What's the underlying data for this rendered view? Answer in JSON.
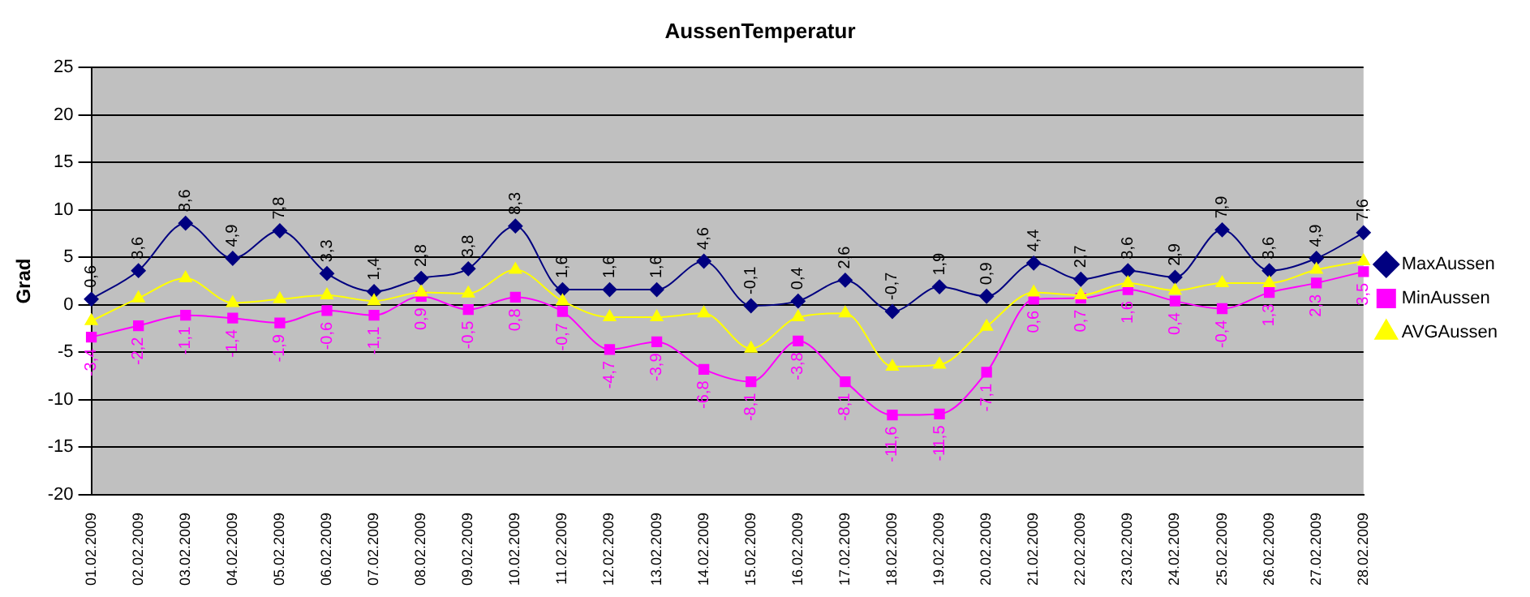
{
  "chart_data": {
    "type": "line",
    "title": "AussenTemperatur",
    "ylabel": "Grad",
    "categories": [
      "01.02.2009",
      "02.02.2009",
      "03.02.2009",
      "04.02.2009",
      "05.02.2009",
      "06.02.2009",
      "07.02.2009",
      "08.02.2009",
      "09.02.2009",
      "10.02.2009",
      "11.02.2009",
      "12.02.2009",
      "13.02.2009",
      "14.02.2009",
      "15.02.2009",
      "16.02.2009",
      "17.02.2009",
      "18.02.2009",
      "19.02.2009",
      "20.02.2009",
      "21.02.2009",
      "22.02.2009",
      "23.02.2009",
      "24.02.2009",
      "25.02.2009",
      "26.02.2009",
      "27.02.2009",
      "28.02.2009"
    ],
    "series": [
      {
        "name": "MaxAussen",
        "color": "#000080",
        "marker": "diamond",
        "values": [
          0.6,
          3.6,
          8.6,
          4.9,
          7.8,
          3.3,
          1.4,
          2.8,
          3.8,
          8.3,
          1.6,
          1.6,
          1.6,
          4.6,
          -0.1,
          0.4,
          2.6,
          -0.7,
          1.9,
          0.9,
          4.4,
          2.7,
          3.6,
          2.9,
          7.9,
          3.6,
          4.9,
          7.6
        ],
        "value_labels": [
          "0,6",
          "3,6",
          "8,6",
          "4,9",
          "7,8",
          "3,3",
          "1,4",
          "2,8",
          "3,8",
          "8,3",
          "1,6",
          "1,6",
          "1,6",
          "4,6",
          "-0,1",
          "0,4",
          "2,6",
          "-0,7",
          "1,9",
          "0,9",
          "4,4",
          "2,7",
          "3,6",
          "2,9",
          "7,9",
          "3,6",
          "4,9",
          "7,6"
        ]
      },
      {
        "name": "MinAussen",
        "color": "#ff00ff",
        "marker": "square",
        "values": [
          -3.4,
          -2.2,
          -1.1,
          -1.4,
          -1.9,
          -0.6,
          -1.1,
          0.9,
          -0.5,
          0.8,
          -0.7,
          -4.7,
          -3.9,
          -6.8,
          -8.1,
          -3.8,
          -8.1,
          -11.6,
          -11.5,
          -7.1,
          0.6,
          0.7,
          1.6,
          0.4,
          -0.4,
          1.3,
          2.3,
          3.5
        ],
        "value_labels": [
          "-3,4",
          "-2,2",
          "-1,1",
          "-1,4",
          "-1,9",
          "-0,6",
          "-1,1",
          "0,9",
          "-0,5",
          "0,8",
          "-0,7",
          "-4,7",
          "-3,9",
          "-6,8",
          "-8,1",
          "-3,8",
          "-8,1",
          "-11,6",
          "-11,5",
          "-7,1",
          "0,6",
          "0,7",
          "1,6",
          "0,4",
          "-0,4",
          "1,3",
          "2,3",
          "3,5"
        ]
      },
      {
        "name": "AVGAussen",
        "color": "#ffff00",
        "marker": "triangle",
        "values": [
          -1.7,
          0.7,
          2.8,
          0.2,
          0.6,
          1.0,
          0.4,
          1.3,
          1.2,
          3.7,
          0.4,
          -1.3,
          -1.3,
          -0.9,
          -4.6,
          -1.3,
          -0.9,
          -6.5,
          -6.3,
          -2.3,
          1.3,
          1.0,
          2.3,
          1.5,
          2.3,
          2.3,
          3.7,
          4.6
        ]
      }
    ],
    "ylim": [
      -20,
      25
    ],
    "yticks": [
      -20,
      -15,
      -10,
      -5,
      0,
      5,
      10,
      15,
      20,
      25
    ],
    "grid": "y",
    "legend": "right"
  }
}
